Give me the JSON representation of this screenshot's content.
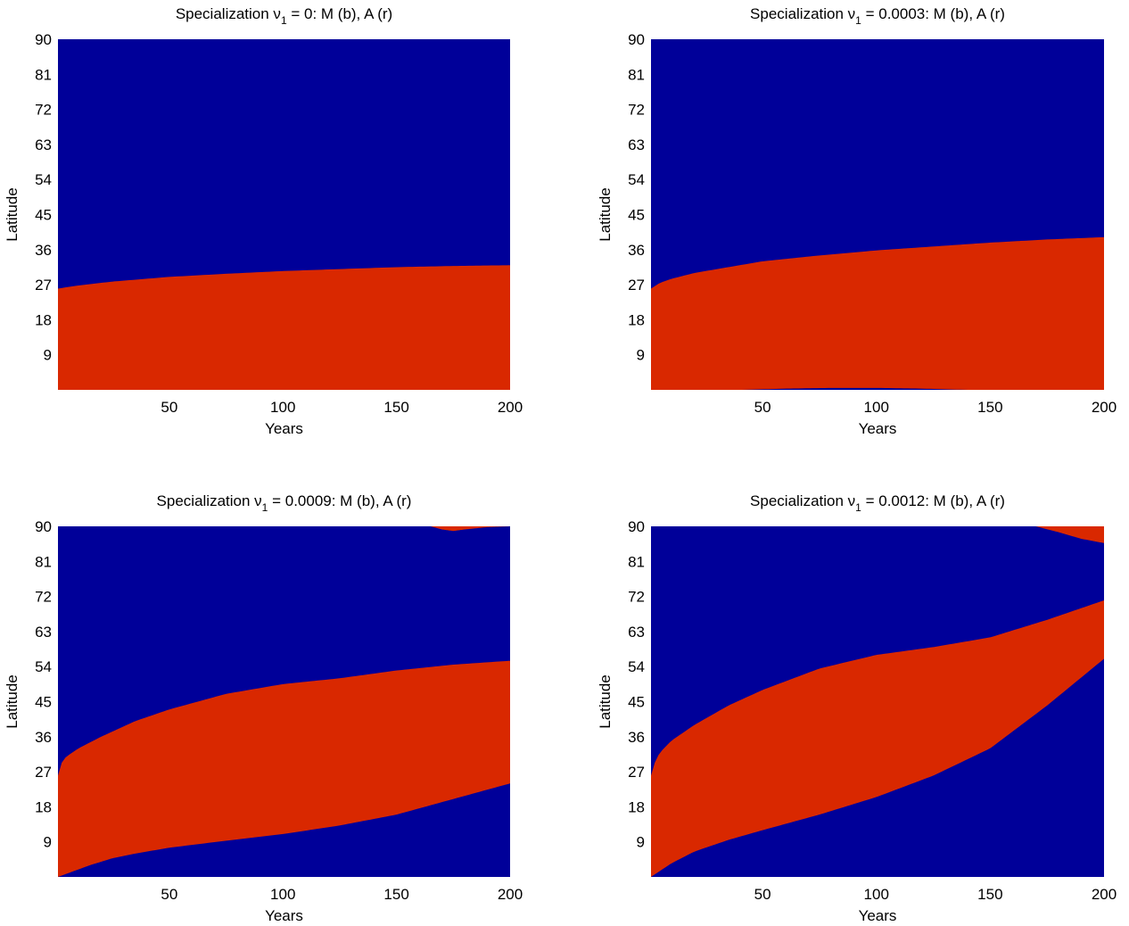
{
  "colors": {
    "M": "#000099",
    "A": "#d92800"
  },
  "chart_data": [
    {
      "type": "area",
      "title": {
        "prefix": "Specialization ν",
        "subscript": "1",
        "suffix": " = 0: M (b), A (r)"
      },
      "xlabel": "Years",
      "ylabel": "Latitude",
      "xlim": [
        1,
        200
      ],
      "ylim": [
        0,
        90
      ],
      "xticks": [
        50,
        100,
        150,
        200
      ],
      "yticks": [
        9,
        18,
        27,
        36,
        45,
        54,
        63,
        72,
        81,
        90
      ],
      "background_region": "M",
      "regions": [
        {
          "label": "A",
          "upper": {
            "x": [
              1,
              10,
              25,
              50,
              75,
              100,
              125,
              150,
              175,
              200
            ],
            "y": [
              26,
              26.8,
              27.8,
              29,
              29.8,
              30.5,
              31,
              31.5,
              31.8,
              32
            ]
          },
          "lower": {
            "x": [
              1,
              200
            ],
            "y": [
              0,
              0
            ]
          }
        }
      ]
    },
    {
      "type": "area",
      "title": {
        "prefix": "Specialization ν",
        "subscript": "1",
        "suffix": " = 0.0003: M (b), A (r)"
      },
      "xlabel": "Years",
      "ylabel": "Latitude",
      "xlim": [
        1,
        200
      ],
      "ylim": [
        0,
        90
      ],
      "xticks": [
        50,
        100,
        150,
        200
      ],
      "yticks": [
        9,
        18,
        27,
        36,
        45,
        54,
        63,
        72,
        81,
        90
      ],
      "background_region": "M",
      "regions": [
        {
          "label": "A",
          "upper": {
            "x": [
              1,
              5,
              10,
              20,
              30,
              50,
              75,
              100,
              125,
              150,
              175,
              200
            ],
            "y": [
              26,
              27.5,
              28.5,
              30,
              31,
              33,
              34.5,
              35.8,
              36.8,
              37.8,
              38.6,
              39.2
            ]
          },
          "lower": {
            "x": [
              1,
              40,
              60,
              80,
              100,
              120,
              140,
              160,
              200
            ],
            "y": [
              0,
              0,
              0.3,
              0.5,
              0.5,
              0.3,
              0,
              0,
              0
            ]
          }
        }
      ]
    },
    {
      "type": "area",
      "title": {
        "prefix": "Specialization ν",
        "subscript": "1",
        "suffix": " = 0.0009: M (b), A (r)"
      },
      "xlabel": "Years",
      "ylabel": "Latitude",
      "xlim": [
        1,
        200
      ],
      "ylim": [
        0,
        90
      ],
      "xticks": [
        50,
        100,
        150,
        200
      ],
      "yticks": [
        9,
        18,
        27,
        36,
        45,
        54,
        63,
        72,
        81,
        90
      ],
      "background_region": "M",
      "regions": [
        {
          "label": "A",
          "upper": {
            "x": [
              1,
              3,
              5,
              10,
              20,
              35,
              50,
              75,
              100,
              125,
              150,
              175,
              200
            ],
            "y": [
              26,
              30,
              31,
              33,
              36,
              40,
              43,
              47,
              49.5,
              51,
              53,
              54.5,
              55.5
            ]
          },
          "lower": {
            "x": [
              1,
              8,
              15,
              25,
              35,
              50,
              75,
              100,
              125,
              150,
              175,
              200
            ],
            "y": [
              0,
              1.5,
              3,
              4.8,
              6,
              7.5,
              9.3,
              11,
              13.2,
              16,
              20,
              24
            ]
          }
        },
        {
          "label": "A",
          "upper": {
            "x": [
              165,
              200
            ],
            "y": [
              90,
              90
            ]
          },
          "lower": {
            "x": [
              165,
              170,
              175,
              180,
              190,
              200
            ],
            "y": [
              90,
              89.2,
              88.8,
              89.2,
              89.8,
              90
            ]
          }
        }
      ]
    },
    {
      "type": "area",
      "title": {
        "prefix": "Specialization ν",
        "subscript": "1",
        "suffix": " = 0.0012: M (b), A (r)"
      },
      "xlabel": "Years",
      "ylabel": "Latitude",
      "xlim": [
        1,
        200
      ],
      "ylim": [
        0,
        90
      ],
      "xticks": [
        50,
        100,
        150,
        200
      ],
      "yticks": [
        9,
        18,
        27,
        36,
        45,
        54,
        63,
        72,
        81,
        90
      ],
      "background_region": "M",
      "regions": [
        {
          "label": "A",
          "upper": {
            "x": [
              1,
              3,
              5,
              10,
              20,
              35,
              50,
              75,
              100,
              125,
              150,
              175,
              200
            ],
            "y": [
              26,
              30,
              32,
              35,
              39,
              44,
              48,
              53.5,
              57,
              59,
              61.5,
              66,
              71
            ]
          },
          "lower": {
            "x": [
              1,
              10,
              20,
              35,
              50,
              75,
              100,
              125,
              150,
              175,
              200
            ],
            "y": [
              0,
              3.5,
              6.5,
              9.5,
              12,
              16,
              20.5,
              26,
              33,
              44,
              56
            ]
          }
        },
        {
          "label": "A",
          "upper": {
            "x": [
              170,
              200
            ],
            "y": [
              90,
              90
            ]
          },
          "lower": {
            "x": [
              170,
              180,
              190,
              200
            ],
            "y": [
              90,
              88.5,
              86.8,
              85.7
            ]
          }
        }
      ]
    }
  ]
}
